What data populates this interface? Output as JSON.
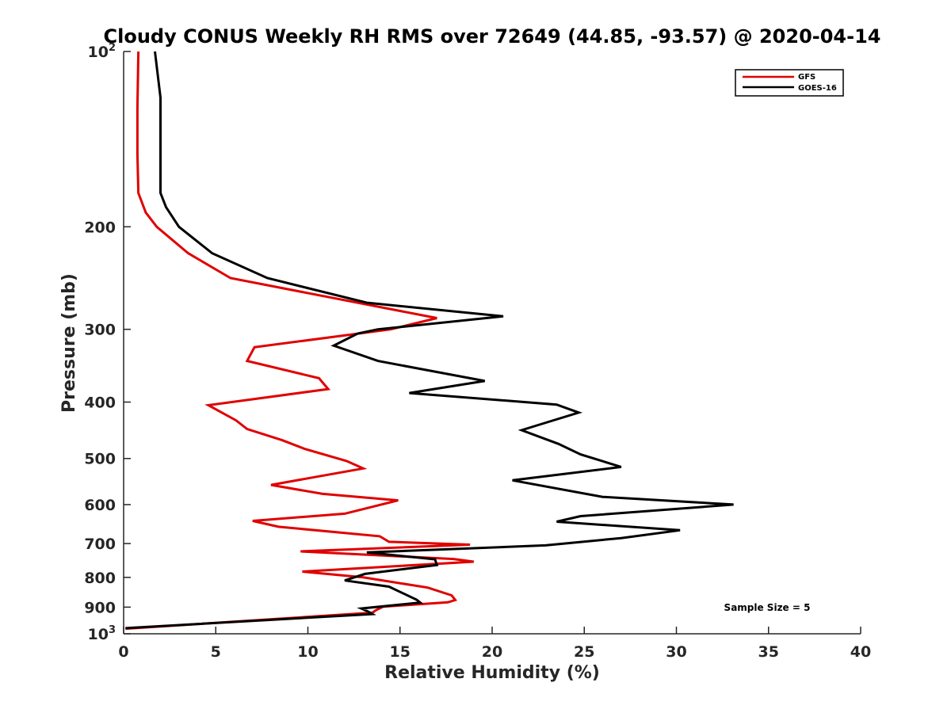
{
  "chart_data": {
    "type": "line",
    "title": "Cloudy CONUS Weekly RH RMS over 72649 (44.85, -93.57) @ 2020-04-14",
    "xlabel": "Relative Humidity (%)",
    "ylabel": "Pressure (mb)",
    "xlim": [
      0,
      40
    ],
    "ylim": [
      100,
      1000
    ],
    "y_scale": "log",
    "y_reversed": true,
    "x_ticks": [
      "0",
      "5",
      "10",
      "15",
      "20",
      "25",
      "30",
      "35",
      "40"
    ],
    "y_ticks": [
      {
        "value": 100,
        "label": "10",
        "sup": "2"
      },
      {
        "value": 200,
        "label": "200"
      },
      {
        "value": 300,
        "label": "300"
      },
      {
        "value": 400,
        "label": "400"
      },
      {
        "value": 500,
        "label": "500"
      },
      {
        "value": 600,
        "label": "600"
      },
      {
        "value": 700,
        "label": "700"
      },
      {
        "value": 800,
        "label": "800"
      },
      {
        "value": 900,
        "label": "900"
      },
      {
        "value": 1000,
        "label": "10",
        "sup": "3"
      }
    ],
    "legend_position": "top-right",
    "grid": false,
    "annotation": "Sample Size = 5",
    "series": [
      {
        "name": "GFS",
        "color": "#e00000",
        "points": [
          [
            0.8,
            100
          ],
          [
            0.75,
            125
          ],
          [
            0.75,
            150
          ],
          [
            0.8,
            175
          ],
          [
            1.2,
            189
          ],
          [
            1.8,
            200
          ],
          [
            3.5,
            222
          ],
          [
            5.8,
            245
          ],
          [
            17.0,
            287
          ],
          [
            14.5,
            300
          ],
          [
            7.1,
            322
          ],
          [
            6.7,
            340
          ],
          [
            10.6,
            364
          ],
          [
            11.1,
            380
          ],
          [
            4.6,
            405
          ],
          [
            6.1,
            430
          ],
          [
            6.7,
            445
          ],
          [
            8.6,
            465
          ],
          [
            9.8,
            481
          ],
          [
            12.1,
            505
          ],
          [
            13.0,
            520
          ],
          [
            8.0,
            555
          ],
          [
            10.8,
            575
          ],
          [
            14.9,
            590
          ],
          [
            12.0,
            622
          ],
          [
            7.0,
            640
          ],
          [
            8.4,
            655
          ],
          [
            13.9,
            680
          ],
          [
            14.4,
            695
          ],
          [
            18.8,
            703
          ],
          [
            9.6,
            722
          ],
          [
            17.9,
            744
          ],
          [
            19.0,
            752
          ],
          [
            9.7,
            782
          ],
          [
            13.0,
            800
          ],
          [
            16.5,
            833
          ],
          [
            17.8,
            859
          ],
          [
            18.0,
            875
          ],
          [
            17.6,
            883
          ],
          [
            14.1,
            898
          ],
          [
            13.7,
            911
          ],
          [
            13.5,
            920
          ],
          [
            0.1,
            980
          ]
        ]
      },
      {
        "name": "GOES-16",
        "color": "#000000",
        "points": [
          [
            1.7,
            100
          ],
          [
            2.0,
            120
          ],
          [
            2.0,
            150
          ],
          [
            2.0,
            175
          ],
          [
            2.3,
            185
          ],
          [
            3.0,
            200
          ],
          [
            4.8,
            222
          ],
          [
            7.8,
            245
          ],
          [
            13.2,
            270
          ],
          [
            20.6,
            285
          ],
          [
            13.8,
            300
          ],
          [
            12.7,
            305
          ],
          [
            11.4,
            320
          ],
          [
            13.8,
            340
          ],
          [
            19.6,
            368
          ],
          [
            15.5,
            386
          ],
          [
            23.5,
            404
          ],
          [
            24.7,
            417
          ],
          [
            22.5,
            438
          ],
          [
            21.6,
            447
          ],
          [
            23.6,
            472
          ],
          [
            24.8,
            492
          ],
          [
            27.0,
            517
          ],
          [
            21.1,
            545
          ],
          [
            26.0,
            582
          ],
          [
            33.1,
            600
          ],
          [
            24.8,
            628
          ],
          [
            23.5,
            642
          ],
          [
            30.2,
            664
          ],
          [
            27.0,
            685
          ],
          [
            22.9,
            705
          ],
          [
            13.2,
            725
          ],
          [
            16.9,
            745
          ],
          [
            17.0,
            762
          ],
          [
            13.1,
            789
          ],
          [
            12.0,
            810
          ],
          [
            14.4,
            830
          ],
          [
            15.9,
            874
          ],
          [
            16.1,
            884
          ],
          [
            12.9,
            905
          ],
          [
            13.3,
            917
          ],
          [
            13.5,
            925
          ],
          [
            0.1,
            978
          ]
        ]
      }
    ]
  }
}
